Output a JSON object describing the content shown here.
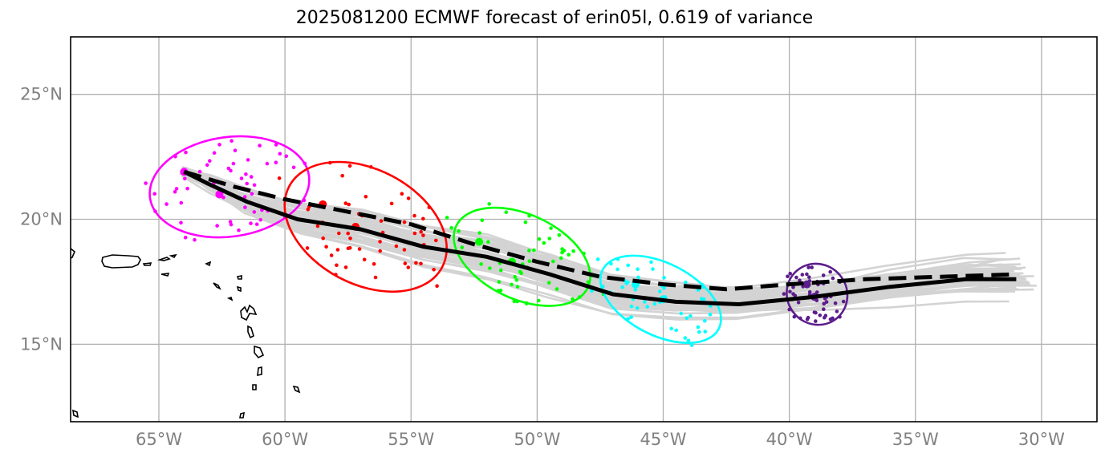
{
  "title": "2025081200 ECMWF forecast of erin05l, 0.619 of variance",
  "map": {
    "lon_range": [
      -68.5,
      -27.8
    ],
    "lat_range": [
      11.9,
      27.3
    ],
    "gridlines": true,
    "gridline_color": "#b0b0b0",
    "lon_ticks": [
      {
        "value": -65,
        "label": "65°W"
      },
      {
        "value": -60,
        "label": "60°W"
      },
      {
        "value": -55,
        "label": "55°W"
      },
      {
        "value": -50,
        "label": "50°W"
      },
      {
        "value": -45,
        "label": "45°W"
      },
      {
        "value": -40,
        "label": "40°W"
      },
      {
        "value": -35,
        "label": "35°W"
      },
      {
        "value": -30,
        "label": "30°W"
      }
    ],
    "lat_ticks": [
      {
        "value": 25,
        "label": "25°N"
      },
      {
        "value": 20,
        "label": "20°N"
      },
      {
        "value": 15,
        "label": "15°N"
      }
    ]
  },
  "tracks": {
    "mean_track": {
      "color": "#000000",
      "style": "solid",
      "points": [
        [
          -64,
          21.9
        ],
        [
          -63,
          21.4
        ],
        [
          -61.5,
          20.7
        ],
        [
          -59.5,
          20.0
        ],
        [
          -57,
          19.6
        ],
        [
          -54.5,
          18.9
        ],
        [
          -52,
          18.5
        ],
        [
          -49.5,
          17.8
        ],
        [
          -47,
          17.0
        ],
        [
          -44.5,
          16.7
        ],
        [
          -42,
          16.6
        ],
        [
          -39,
          16.9
        ],
        [
          -36,
          17.3
        ],
        [
          -33,
          17.6
        ],
        [
          -31,
          17.6
        ]
      ]
    },
    "control_track": {
      "color": "#000000",
      "style": "dashed",
      "points": [
        [
          -64,
          21.9
        ],
        [
          -62,
          21.3
        ],
        [
          -60,
          20.8
        ],
        [
          -57.5,
          20.3
        ],
        [
          -55,
          19.8
        ],
        [
          -52.5,
          19.0
        ],
        [
          -50,
          18.3
        ],
        [
          -47.5,
          17.7
        ],
        [
          -45,
          17.4
        ],
        [
          -42.5,
          17.2
        ],
        [
          -40,
          17.4
        ],
        [
          -37,
          17.6
        ],
        [
          -34,
          17.7
        ],
        [
          -31,
          17.8
        ]
      ]
    }
  },
  "forecast_groups": [
    {
      "name": "magenta",
      "color": "#ff00ff",
      "centroid": [
        -62.5,
        21.0
      ],
      "ellipse": {
        "cx": -62.2,
        "cy": 21.3,
        "rx_deg": 5.6,
        "ry_deg": 2.7,
        "angle": -8
      },
      "mean_points": [
        [
          -64,
          21.9
        ],
        [
          -62.6,
          21.0
        ]
      ]
    },
    {
      "name": "red",
      "color": "#ff0000",
      "centroid": [
        -57,
        19.9
      ],
      "ellipse": {
        "cx": -56.8,
        "cy": 19.7,
        "rx_deg": 6.1,
        "ry_deg": 3.3,
        "angle": 28
      },
      "mean_points": [
        [
          -58.5,
          20.6
        ],
        [
          -57.2,
          19.7
        ]
      ]
    },
    {
      "name": "green",
      "color": "#00ff00",
      "centroid": [
        -51.5,
        18.8
      ],
      "ellipse": {
        "cx": -50.6,
        "cy": 18.5,
        "rx_deg": 5.0,
        "ry_deg": 2.1,
        "angle": 25
      },
      "mean_points": [
        [
          -52.3,
          19.1
        ],
        [
          -51.0,
          18.3
        ]
      ]
    },
    {
      "name": "cyan",
      "color": "#00ffff",
      "centroid": [
        -45.5,
        17.1
      ],
      "ellipse": {
        "cx": -45.1,
        "cy": 16.8,
        "rx_deg": 4.4,
        "ry_deg": 1.6,
        "angle": 27
      },
      "mean_points": [
        [
          -46.1,
          17.4
        ],
        [
          -45.0,
          16.8
        ]
      ]
    },
    {
      "name": "purple",
      "color": "#5c1d8c",
      "centroid": [
        -39.1,
        17.0
      ],
      "ellipse": {
        "cx": -38.9,
        "cy": 17.0,
        "rx_deg": 1.7,
        "ry_deg": 1.1,
        "angle": 50
      },
      "mean_points": [
        [
          -39.3,
          17.4
        ],
        [
          -39.0,
          16.9
        ]
      ]
    }
  ],
  "colors": {
    "ensemble_track": "#d3d3d3",
    "coast": "#000000",
    "frame": "#000000"
  }
}
